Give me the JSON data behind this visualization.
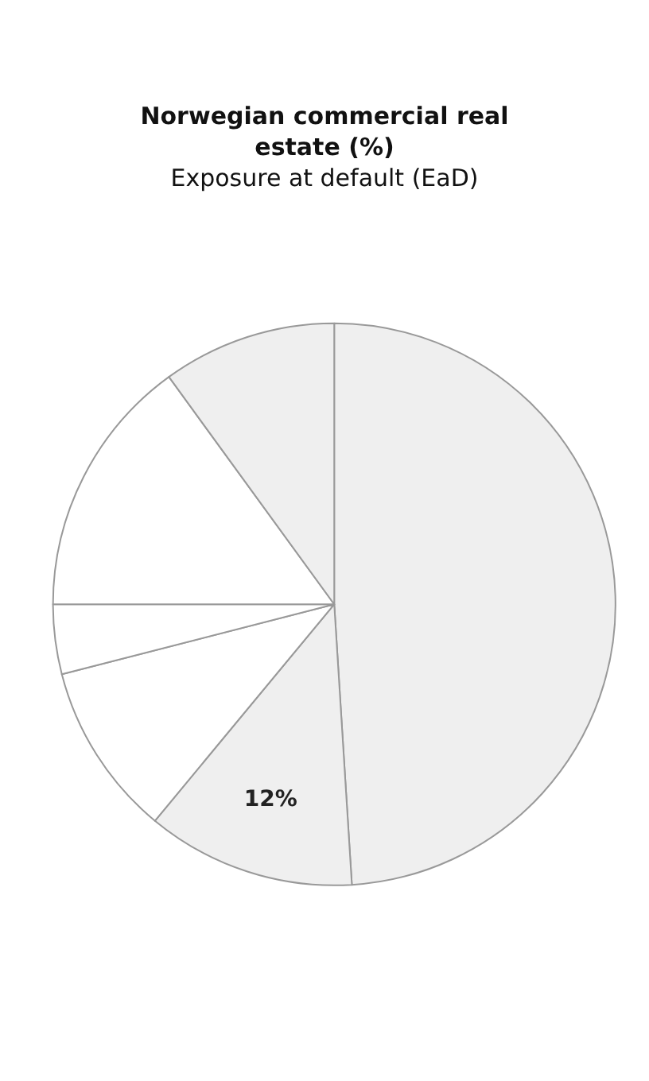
{
  "chart_data": {
    "type": "pie",
    "title": "Norwegian commercial real estate (%)",
    "subtitle": "Exposure at default (EaD)",
    "categories": [
      null,
      null,
      null,
      null,
      null,
      null
    ],
    "values": [
      49,
      12,
      10,
      4,
      15,
      10
    ],
    "value_labels": [
      null,
      "12%",
      null,
      null,
      null,
      null
    ],
    "colors": [
      "#efefef",
      "#efefef",
      "#ffffff",
      "#ffffff",
      "#ffffff",
      "#efefef"
    ],
    "legend": false
  }
}
